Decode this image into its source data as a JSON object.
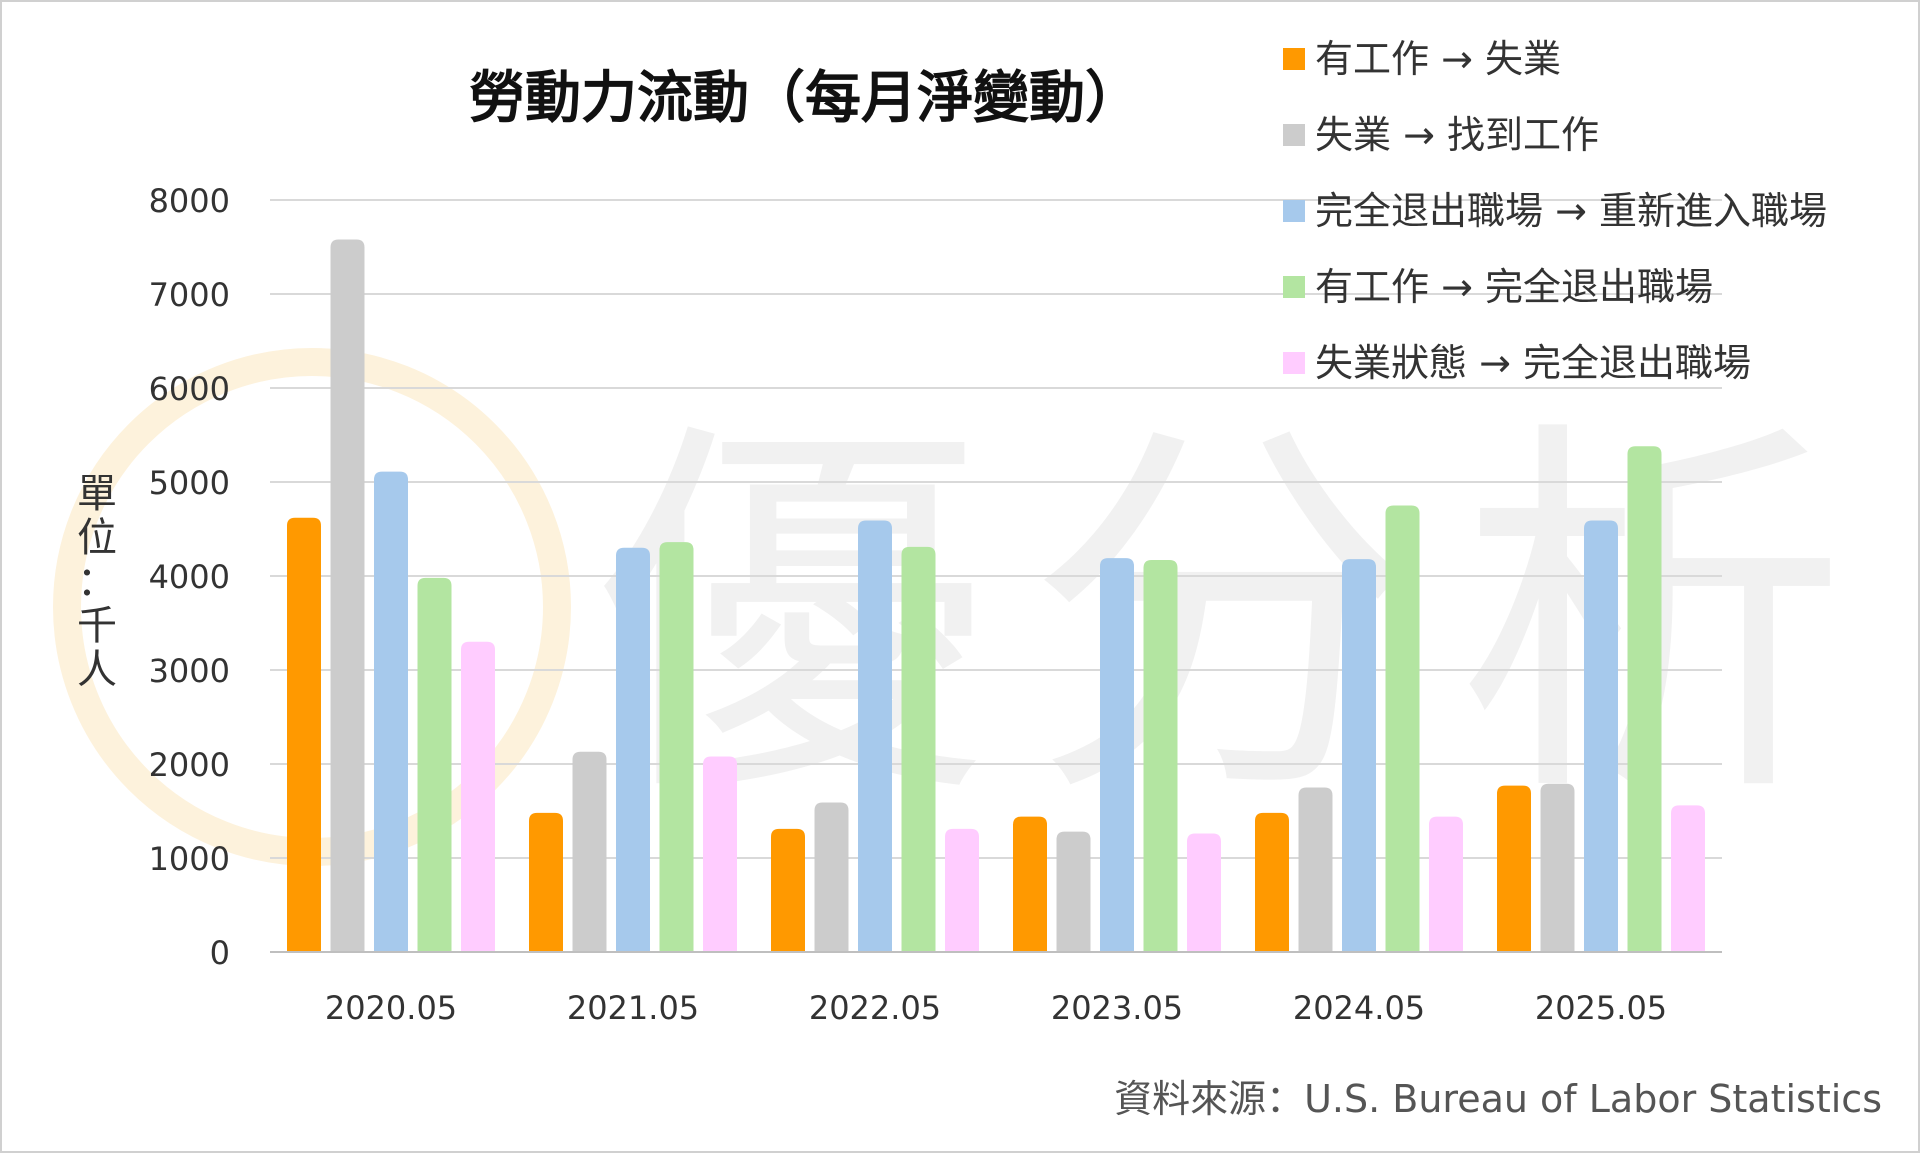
{
  "watermark": {
    "text": "優分析"
  },
  "chart_data": {
    "type": "bar",
    "title": "勞動力流動（每月淨變動）",
    "ylabel": "單位：千人",
    "xlabel": "",
    "ylim": [
      0,
      8000
    ],
    "yticks": [
      0,
      1000,
      2000,
      3000,
      4000,
      5000,
      6000,
      7000,
      8000
    ],
    "grid": true,
    "legend_position": "top-right",
    "categories": [
      "2020.05",
      "2021.05",
      "2022.05",
      "2023.05",
      "2024.05",
      "2025.05"
    ],
    "series": [
      {
        "name": "有工作 → 失業",
        "color": "#FF9900",
        "values": [
          4620,
          1480,
          1310,
          1440,
          1480,
          1770
        ]
      },
      {
        "name": "失業 → 找到工作",
        "color": "#CCCCCC",
        "values": [
          7580,
          2130,
          1590,
          1280,
          1750,
          1790
        ]
      },
      {
        "name": "完全退出職場 → 重新進入職場",
        "color": "#A6C9EC",
        "values": [
          5110,
          4300,
          4590,
          4190,
          4180,
          4590
        ]
      },
      {
        "name": "有工作 → 完全退出職場",
        "color": "#B3E5A1",
        "values": [
          3980,
          4360,
          4310,
          4170,
          4750,
          5380
        ]
      },
      {
        "name": "失業狀態 → 完全退出職場",
        "color": "#FFCCFF",
        "values": [
          3300,
          2080,
          1310,
          1260,
          1440,
          1560
        ]
      }
    ]
  },
  "source": "資料來源：U.S. Bureau of Labor Statistics"
}
